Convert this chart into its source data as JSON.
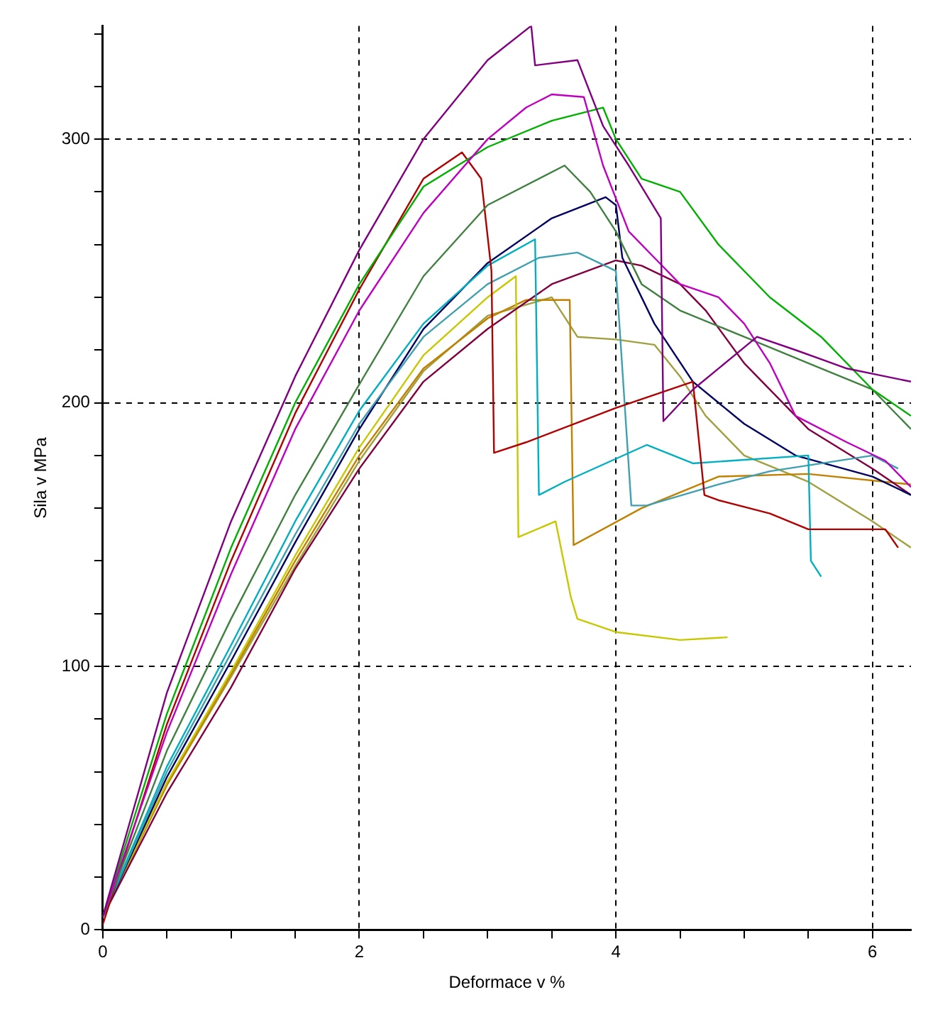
{
  "chart_data": {
    "type": "line",
    "xlabel": "Deformace v %",
    "ylabel": "Sila v MPa",
    "xlim": [
      0,
      6.3
    ],
    "ylim": [
      0,
      343
    ],
    "xticks": [
      0,
      {
        "value": 0.5,
        "label": null
      },
      {
        "value": 1,
        "label": null
      },
      {
        "value": 1.5,
        "label": null
      },
      2,
      {
        "value": 2.5,
        "label": null
      },
      {
        "value": 3,
        "label": null
      },
      {
        "value": 3.5,
        "label": null
      },
      4,
      {
        "value": 4.5,
        "label": null
      },
      {
        "value": 5,
        "label": null
      },
      {
        "value": 5.5,
        "label": null
      },
      6
    ],
    "yticks": [
      0,
      {
        "value": 20,
        "label": null
      },
      {
        "value": 40,
        "label": null
      },
      {
        "value": 60,
        "label": null
      },
      {
        "value": 80,
        "label": null
      },
      100,
      {
        "value": 120,
        "label": null
      },
      {
        "value": 140,
        "label": null
      },
      {
        "value": 160,
        "label": null
      },
      {
        "value": 180,
        "label": null
      },
      200,
      {
        "value": 220,
        "label": null
      },
      {
        "value": 240,
        "label": null
      },
      {
        "value": 260,
        "label": null
      },
      {
        "value": 280,
        "label": null
      },
      300,
      {
        "value": 320,
        "label": null
      },
      {
        "value": 340,
        "label": null
      }
    ],
    "grid": true,
    "marker": "none",
    "legend": false,
    "series": [
      {
        "color": "#800080",
        "x": [
          0,
          0.5,
          1,
          1.5,
          2,
          2.5,
          3,
          3.34,
          3.37,
          3.7,
          3.9,
          4.1,
          4.35,
          4.37,
          4.6,
          5.1,
          5.4,
          5.8,
          6.3
        ],
        "values": [
          5,
          90,
          155,
          210,
          258,
          300,
          330,
          343,
          328,
          330,
          305,
          290,
          270,
          193,
          205,
          225,
          220,
          213,
          208
        ]
      },
      {
        "color": "#c000c0",
        "x": [
          0,
          0.5,
          1,
          1.5,
          2,
          2.5,
          3,
          3.3,
          3.5,
          3.75,
          3.9,
          4.1,
          4.3,
          4.5,
          4.8,
          5,
          5.2,
          5.4,
          5.8,
          6.1,
          6.3
        ],
        "values": [
          5,
          75,
          135,
          190,
          235,
          272,
          300,
          312,
          317,
          316,
          290,
          265,
          255,
          245,
          240,
          230,
          215,
          195,
          185,
          178,
          168
        ]
      },
      {
        "color": "#00b000",
        "x": [
          0,
          0.5,
          1,
          1.5,
          2,
          2.5,
          3,
          3.5,
          3.9,
          4,
          4.2,
          4.5,
          4.8,
          5.2,
          5.6,
          6,
          6.3
        ],
        "values": [
          5,
          82,
          145,
          200,
          245,
          282,
          297,
          307,
          312,
          300,
          285,
          280,
          260,
          240,
          225,
          205,
          195
        ]
      },
      {
        "color": "#408040",
        "x": [
          0,
          0.5,
          1,
          1.5,
          2,
          2.5,
          3,
          3.6,
          3.8,
          4,
          4.2,
          4.5,
          5,
          5.5,
          6,
          6.3
        ],
        "values": [
          5,
          68,
          118,
          165,
          207,
          248,
          275,
          290,
          280,
          265,
          245,
          235,
          225,
          215,
          205,
          190
        ]
      },
      {
        "color": "#b00000",
        "x": [
          0,
          0.5,
          1,
          1.5,
          2,
          2.5,
          2.8,
          2.95,
          3.03,
          3.05,
          3.3,
          4,
          4.6,
          4.69,
          4.8,
          5.2,
          5.5,
          6.1,
          6.2
        ],
        "values": [
          2,
          78,
          140,
          196,
          243,
          285,
          295,
          285,
          250,
          181,
          185,
          198,
          208,
          165,
          163,
          158,
          152,
          152,
          145
        ]
      },
      {
        "color": "#00b0c0",
        "x": [
          0,
          0.5,
          1,
          1.5,
          2,
          2.5,
          3,
          3.37,
          3.4,
          3.6,
          4.24,
          4.6,
          5.5,
          5.52,
          5.6
        ],
        "values": [
          5,
          62,
          108,
          155,
          197,
          230,
          252,
          262,
          165,
          170,
          184,
          177,
          180,
          140,
          134
        ]
      },
      {
        "color": "#40a0b0",
        "x": [
          0,
          0.5,
          1,
          1.5,
          2,
          2.5,
          3,
          3.4,
          3.7,
          4,
          4.12,
          4.24,
          4.8,
          5.2,
          6,
          6.2
        ],
        "values": [
          5,
          60,
          105,
          150,
          192,
          225,
          245,
          255,
          257,
          250,
          161,
          161,
          169,
          174,
          180,
          175
        ]
      },
      {
        "color": "#000060",
        "x": [
          0,
          0.5,
          1,
          1.5,
          2,
          2.5,
          3,
          3.5,
          3.92,
          4,
          4.05,
          4.3,
          4.6,
          5,
          5.4,
          6,
          6.3
        ],
        "values": [
          5,
          58,
          102,
          147,
          190,
          228,
          253,
          270,
          278,
          275,
          255,
          230,
          208,
          192,
          180,
          172,
          165
        ]
      },
      {
        "color": "#800040",
        "x": [
          0,
          0.5,
          1,
          1.5,
          2,
          2.5,
          3,
          3.5,
          4,
          4.2,
          4.5,
          4.7,
          5,
          5.5,
          6,
          6.3
        ],
        "values": [
          5,
          52,
          92,
          137,
          175,
          208,
          228,
          245,
          254,
          252,
          245,
          235,
          215,
          190,
          175,
          165
        ]
      },
      {
        "color": "#c8c800",
        "x": [
          0,
          0.5,
          1,
          1.5,
          2,
          2.5,
          3,
          3.22,
          3.24,
          3.53,
          3.65,
          3.7,
          4,
          4.5,
          4.87
        ],
        "values": [
          5,
          56,
          98,
          142,
          183,
          218,
          240,
          248,
          149,
          155,
          126,
          118,
          113,
          110,
          111
        ]
      },
      {
        "color": "#c08000",
        "x": [
          0,
          0.5,
          1,
          1.5,
          2,
          2.5,
          3,
          3.3,
          3.64,
          3.67,
          4.2,
          4.8,
          5.5,
          6.3
        ],
        "values": [
          5,
          55,
          97,
          140,
          180,
          213,
          232,
          239,
          239,
          146,
          160,
          172,
          173,
          169
        ]
      },
      {
        "color": "#a0a040",
        "x": [
          0,
          0.5,
          1,
          1.5,
          2,
          2.5,
          3,
          3.5,
          3.7,
          4,
          4.3,
          4.5,
          4.7,
          5,
          5.5,
          6,
          6.3
        ],
        "values": [
          5,
          55,
          96,
          138,
          178,
          212,
          233,
          240,
          225,
          224,
          222,
          210,
          195,
          180,
          170,
          155,
          145
        ]
      }
    ]
  }
}
